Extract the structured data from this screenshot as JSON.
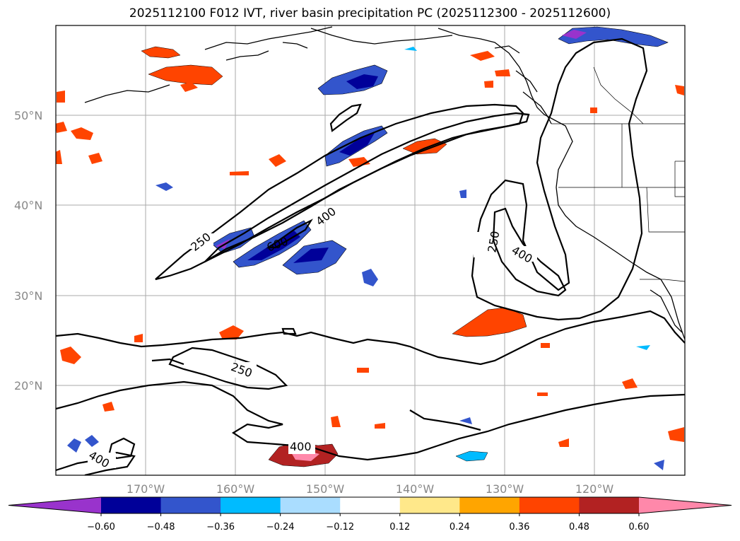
{
  "title": "2025112100 F012 IVT, river basin precipitation PC (2025112300 - 2025112600)",
  "lat_labels": [
    "50°N",
    "40°N",
    "30°N",
    "20°N"
  ],
  "lon_labels": [
    "170°W",
    "160°W",
    "150°W",
    "140°W",
    "130°W",
    "120°W"
  ],
  "contour_labels": [
    "250",
    "400",
    "600",
    "250",
    "400",
    "250",
    "400"
  ],
  "colorbar": {
    "ticks": [
      "−0.60",
      "−0.48",
      "−0.36",
      "−0.24",
      "−0.12",
      "0.12",
      "0.24",
      "0.36",
      "0.48",
      "0.60"
    ],
    "colors": [
      "#9933cc",
      "#000099",
      "#3355cc",
      "#00bbff",
      "#aaddff",
      "#ffffff",
      "#ffe88a",
      "#ffa500",
      "#ff4400",
      "#b22222",
      "#ff88aa"
    ]
  },
  "chart_data": {
    "type": "map",
    "title": "2025112100 F012 IVT, river basin precipitation PC (2025112300 - 2025112600)",
    "extent_lon": [
      -180,
      -110
    ],
    "extent_lat": [
      10,
      60
    ],
    "ivt_contours": [
      250,
      400,
      600
    ],
    "colorbar_levels": [
      -0.6,
      -0.48,
      -0.36,
      -0.24,
      -0.12,
      0.12,
      0.24,
      0.36,
      0.48,
      0.6
    ]
  }
}
